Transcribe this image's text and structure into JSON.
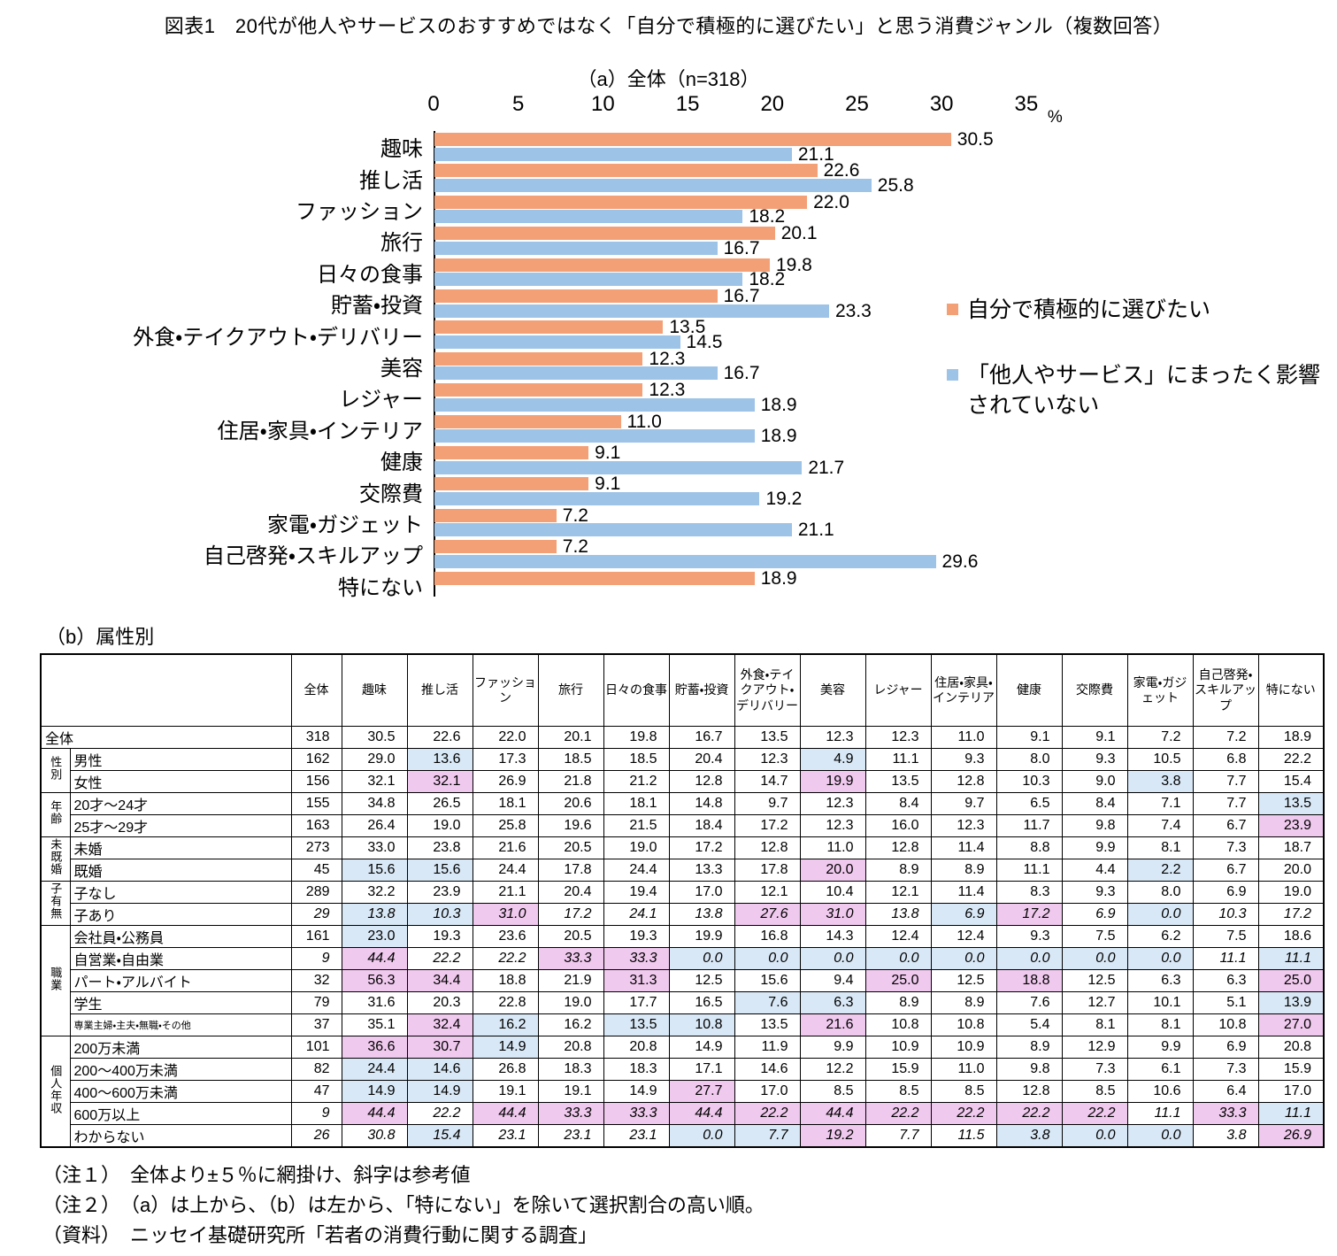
{
  "title": "図表1　20代が他人やサービスのおすすめではなく「自分で積極的に選びたい」と思う消費ジャンル（複数回答）",
  "chart_data": {
    "type": "bar",
    "orientation": "horizontal",
    "subtitle": "（a）全体（n=318）",
    "unit": "%",
    "xlim": [
      0,
      35
    ],
    "xticks": [
      0,
      5,
      10,
      15,
      20,
      25,
      30,
      35
    ],
    "legend_position": "right",
    "categories": [
      "趣味",
      "推し活",
      "ファッション",
      "旅行",
      "日々の食事",
      "貯蓄・投資",
      "外食・テイクアウト・デリバリー",
      "美容",
      "レジャー",
      "住居・家具・インテリア",
      "健康",
      "交際費",
      "家電・ガジェット",
      "自己啓発・スキルアップ",
      "特にない"
    ],
    "series": [
      {
        "name": "自分で積極的に選びたい",
        "color": "#F4A076",
        "values": [
          30.5,
          22.6,
          22.0,
          20.1,
          19.8,
          16.7,
          13.5,
          12.3,
          12.3,
          11.0,
          9.1,
          9.1,
          7.2,
          7.2,
          18.9
        ]
      },
      {
        "name": "「他人やサービス」にまったく影響されていない",
        "color": "#9DC3E6",
        "values": [
          21.1,
          25.8,
          18.2,
          16.7,
          18.2,
          23.3,
          14.5,
          16.7,
          18.9,
          18.9,
          21.7,
          19.2,
          21.1,
          29.6,
          null
        ]
      }
    ]
  },
  "table": {
    "caption": "（b）属性別",
    "highlight_colors": {
      "above": "#F0C9EE",
      "below": "#D9E8F6"
    },
    "columns": [
      "全体",
      "趣味",
      "推し活",
      "ファッション",
      "旅行",
      "日々の食事",
      "貯蓄・投資",
      "外食・テイクアウト・デリバリー",
      "美容",
      "レジャー",
      "住居・家具・インテリア",
      "健康",
      "交際費",
      "家電・ガジェット",
      "自己啓発・スキルアップ",
      "特にない"
    ],
    "groups": [
      {
        "label": "",
        "rows": [
          {
            "label": "全体",
            "n": 318,
            "italic": false,
            "values": [
              30.5,
              22.6,
              22.0,
              20.1,
              19.8,
              16.7,
              13.5,
              12.3,
              12.3,
              11.0,
              9.1,
              9.1,
              7.2,
              7.2,
              18.9
            ],
            "marks": [
              "",
              "",
              "",
              "",
              "",
              "",
              "",
              "",
              "",
              "",
              "",
              "",
              "",
              "",
              ""
            ]
          }
        ]
      },
      {
        "label": "性別",
        "rows": [
          {
            "label": "男性",
            "n": 162,
            "italic": false,
            "values": [
              29.0,
              13.6,
              17.3,
              18.5,
              18.5,
              20.4,
              12.3,
              4.9,
              11.1,
              9.3,
              8.0,
              9.3,
              10.5,
              6.8,
              22.2
            ],
            "marks": [
              "",
              "lo",
              "",
              "",
              "",
              "",
              "",
              "lo",
              "",
              "",
              "",
              "",
              "",
              "",
              ""
            ]
          },
          {
            "label": "女性",
            "n": 156,
            "italic": false,
            "values": [
              32.1,
              32.1,
              26.9,
              21.8,
              21.2,
              12.8,
              14.7,
              19.9,
              13.5,
              12.8,
              10.3,
              9.0,
              3.8,
              7.7,
              15.4
            ],
            "marks": [
              "",
              "hi",
              "",
              "",
              "",
              "",
              "",
              "hi",
              "",
              "",
              "",
              "",
              "lo",
              "",
              ""
            ]
          }
        ]
      },
      {
        "label": "年齢",
        "rows": [
          {
            "label": "20才～24才",
            "n": 155,
            "italic": false,
            "values": [
              34.8,
              26.5,
              18.1,
              20.6,
              18.1,
              14.8,
              9.7,
              12.3,
              8.4,
              9.7,
              6.5,
              8.4,
              7.1,
              7.7,
              13.5
            ],
            "marks": [
              "",
              "",
              "",
              "",
              "",
              "",
              "",
              "",
              "",
              "",
              "",
              "",
              "",
              "",
              "lo"
            ]
          },
          {
            "label": "25才～29才",
            "n": 163,
            "italic": false,
            "values": [
              26.4,
              19.0,
              25.8,
              19.6,
              21.5,
              18.4,
              17.2,
              12.3,
              16.0,
              12.3,
              11.7,
              9.8,
              7.4,
              6.7,
              23.9
            ],
            "marks": [
              "",
              "",
              "",
              "",
              "",
              "",
              "",
              "",
              "",
              "",
              "",
              "",
              "",
              "",
              "hi"
            ]
          }
        ]
      },
      {
        "label": "未既婚",
        "rows": [
          {
            "label": "未婚",
            "n": 273,
            "italic": false,
            "values": [
              33.0,
              23.8,
              21.6,
              20.5,
              19.0,
              17.2,
              12.8,
              11.0,
              12.8,
              11.4,
              8.8,
              9.9,
              8.1,
              7.3,
              18.7
            ],
            "marks": [
              "",
              "",
              "",
              "",
              "",
              "",
              "",
              "",
              "",
              "",
              "",
              "",
              "",
              "",
              ""
            ]
          },
          {
            "label": "既婚",
            "n": 45,
            "italic": false,
            "values": [
              15.6,
              15.6,
              24.4,
              17.8,
              24.4,
              13.3,
              17.8,
              20.0,
              8.9,
              8.9,
              11.1,
              4.4,
              2.2,
              6.7,
              20.0
            ],
            "marks": [
              "lo",
              "lo",
              "",
              "",
              "",
              "",
              "",
              "hi",
              "",
              "",
              "",
              "",
              "lo",
              "",
              ""
            ]
          }
        ]
      },
      {
        "label": "子有無",
        "rows": [
          {
            "label": "子なし",
            "n": 289,
            "italic": false,
            "values": [
              32.2,
              23.9,
              21.1,
              20.4,
              19.4,
              17.0,
              12.1,
              10.4,
              12.1,
              11.4,
              8.3,
              9.3,
              8.0,
              6.9,
              19.0
            ],
            "marks": [
              "",
              "",
              "",
              "",
              "",
              "",
              "",
              "",
              "",
              "",
              "",
              "",
              "",
              "",
              ""
            ]
          },
          {
            "label": "子あり",
            "n": 29,
            "italic": true,
            "values": [
              13.8,
              10.3,
              31.0,
              17.2,
              24.1,
              13.8,
              27.6,
              31.0,
              13.8,
              6.9,
              17.2,
              6.9,
              0.0,
              10.3,
              17.2
            ],
            "marks": [
              "lo",
              "lo",
              "hi",
              "",
              "",
              "",
              "hi",
              "hi",
              "",
              "lo",
              "hi",
              "",
              "lo",
              "",
              ""
            ]
          }
        ]
      },
      {
        "label": "職業",
        "rows": [
          {
            "label": "会社員・公務員",
            "n": 161,
            "italic": false,
            "values": [
              23.0,
              19.3,
              23.6,
              20.5,
              19.3,
              19.9,
              16.8,
              14.3,
              12.4,
              12.4,
              9.3,
              7.5,
              6.2,
              7.5,
              18.6
            ],
            "marks": [
              "lo",
              "",
              "",
              "",
              "",
              "",
              "",
              "",
              "",
              "",
              "",
              "",
              "",
              "",
              ""
            ]
          },
          {
            "label": "自営業・自由業",
            "n": 9,
            "italic": true,
            "values": [
              44.4,
              22.2,
              22.2,
              33.3,
              33.3,
              0.0,
              0.0,
              0.0,
              0.0,
              0.0,
              0.0,
              0.0,
              0.0,
              11.1,
              11.1
            ],
            "marks": [
              "hi",
              "",
              "",
              "hi",
              "hi",
              "lo",
              "lo",
              "lo",
              "lo",
              "lo",
              "lo",
              "lo",
              "lo",
              "",
              "lo"
            ]
          },
          {
            "label": "パート・アルバイト",
            "n": 32,
            "italic": false,
            "values": [
              56.3,
              34.4,
              18.8,
              21.9,
              31.3,
              12.5,
              15.6,
              9.4,
              25.0,
              12.5,
              18.8,
              12.5,
              6.3,
              6.3,
              25.0
            ],
            "marks": [
              "hi",
              "hi",
              "",
              "",
              "hi",
              "",
              "",
              "",
              "hi",
              "",
              "hi",
              "",
              "",
              "",
              "hi"
            ]
          },
          {
            "label": "学生",
            "n": 79,
            "italic": false,
            "values": [
              31.6,
              20.3,
              22.8,
              19.0,
              17.7,
              16.5,
              7.6,
              6.3,
              8.9,
              8.9,
              7.6,
              12.7,
              10.1,
              5.1,
              13.9
            ],
            "marks": [
              "",
              "",
              "",
              "",
              "",
              "",
              "lo",
              "lo",
              "",
              "",
              "",
              "",
              "",
              "",
              "lo"
            ]
          },
          {
            "label": "専業主婦・主夫・無職・その他",
            "n": 37,
            "italic": false,
            "values": [
              35.1,
              32.4,
              16.2,
              16.2,
              13.5,
              10.8,
              13.5,
              21.6,
              10.8,
              10.8,
              5.4,
              8.1,
              8.1,
              10.8,
              27.0
            ],
            "marks": [
              "",
              "hi",
              "lo",
              "",
              "lo",
              "lo",
              "",
              "hi",
              "",
              "",
              "",
              "",
              "",
              "",
              "hi"
            ]
          }
        ]
      },
      {
        "label": "個人年収",
        "rows": [
          {
            "label": "200万未満",
            "n": 101,
            "italic": false,
            "values": [
              36.6,
              30.7,
              14.9,
              20.8,
              20.8,
              14.9,
              11.9,
              9.9,
              10.9,
              10.9,
              8.9,
              12.9,
              9.9,
              6.9,
              20.8
            ],
            "marks": [
              "hi",
              "hi",
              "lo",
              "",
              "",
              "",
              "",
              "",
              "",
              "",
              "",
              "",
              "",
              "",
              ""
            ]
          },
          {
            "label": "200～400万未満",
            "n": 82,
            "italic": false,
            "values": [
              24.4,
              14.6,
              26.8,
              18.3,
              18.3,
              17.1,
              14.6,
              12.2,
              15.9,
              11.0,
              9.8,
              7.3,
              6.1,
              7.3,
              15.9
            ],
            "marks": [
              "lo",
              "lo",
              "",
              "",
              "",
              "",
              "",
              "",
              "",
              "",
              "",
              "",
              "",
              "",
              ""
            ]
          },
          {
            "label": "400～600万未満",
            "n": 47,
            "italic": false,
            "values": [
              14.9,
              14.9,
              19.1,
              19.1,
              14.9,
              27.7,
              17.0,
              8.5,
              8.5,
              8.5,
              12.8,
              8.5,
              10.6,
              6.4,
              17.0
            ],
            "marks": [
              "lo",
              "lo",
              "",
              "",
              "",
              "hi",
              "",
              "",
              "",
              "",
              "",
              "",
              "",
              "",
              ""
            ]
          },
          {
            "label": "600万以上",
            "n": 9,
            "italic": true,
            "values": [
              44.4,
              22.2,
              44.4,
              33.3,
              33.3,
              44.4,
              22.2,
              44.4,
              22.2,
              22.2,
              22.2,
              22.2,
              11.1,
              33.3,
              11.1
            ],
            "marks": [
              "hi",
              "",
              "hi",
              "hi",
              "hi",
              "hi",
              "hi",
              "hi",
              "hi",
              "hi",
              "hi",
              "hi",
              "",
              "hi",
              "lo"
            ]
          },
          {
            "label": "わからない",
            "n": 26,
            "italic": true,
            "values": [
              30.8,
              15.4,
              23.1,
              23.1,
              23.1,
              0.0,
              7.7,
              19.2,
              7.7,
              11.5,
              3.8,
              0.0,
              0.0,
              3.8,
              26.9
            ],
            "marks": [
              "",
              "lo",
              "",
              "",
              "",
              "lo",
              "lo",
              "hi",
              "",
              "",
              "lo",
              "lo",
              "lo",
              "",
              "hi"
            ]
          }
        ]
      }
    ]
  },
  "notes": [
    "（注１）　全体より±５％に網掛け、斜字は参考値",
    "（注２）　（a）は上から、（b）は左から、「特にない」を除いて選択割合の高い順。",
    "（資料）　ニッセイ基礎研究所「若者の消費行動に関する調査」"
  ]
}
